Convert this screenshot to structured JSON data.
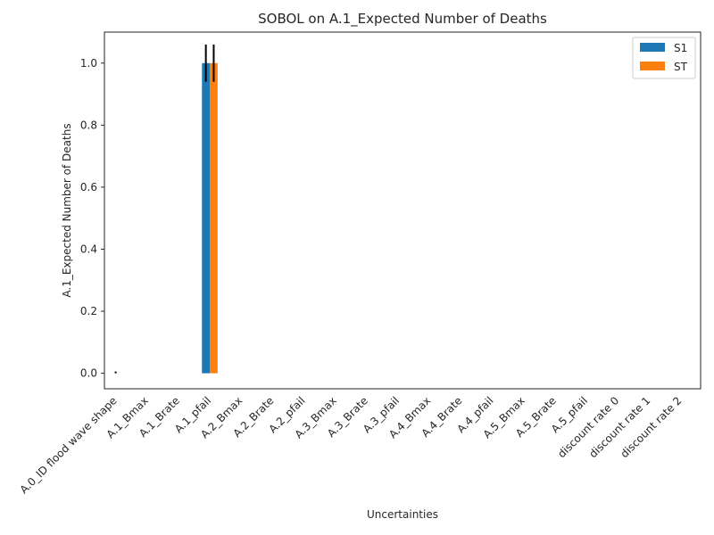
{
  "chart_data": {
    "type": "bar",
    "title": "SOBOL on A.1_Expected Number of Deaths",
    "xlabel": "Uncertainties",
    "ylabel": "A.1_Expected Number of Deaths",
    "ylim": [
      -0.05,
      1.1
    ],
    "yticks": [
      "0.0",
      "0.2",
      "0.4",
      "0.6",
      "0.8",
      "1.0"
    ],
    "grid": false,
    "legend_position": "top-right",
    "categories": [
      "A.0_ID flood wave shape",
      "A.1_Bmax",
      "A.1_Brate",
      "A.1_pfail",
      "A.2_Bmax",
      "A.2_Brate",
      "A.2_pfail",
      "A.3_Bmax",
      "A.3_Brate",
      "A.3_pfail",
      "A.4_Bmax",
      "A.4_Brate",
      "A.4_pfail",
      "A.5_Bmax",
      "A.5_Brate",
      "A.5_pfail",
      "discount rate 0",
      "discount rate 1",
      "discount rate 2"
    ],
    "series": [
      {
        "name": "S1",
        "color": "#1f77b4",
        "values": [
          0,
          0,
          0,
          1.0,
          0,
          0,
          0,
          0,
          0,
          0,
          0,
          0,
          0,
          0,
          0,
          0,
          0,
          0,
          0
        ],
        "errors": [
          0,
          0,
          0,
          0.06,
          0,
          0,
          0,
          0,
          0,
          0,
          0,
          0,
          0,
          0,
          0,
          0,
          0,
          0,
          0
        ]
      },
      {
        "name": "ST",
        "color": "#ff7f0e",
        "values": [
          0,
          0,
          0,
          1.0,
          0,
          0,
          0,
          0,
          0,
          0,
          0,
          0,
          0,
          0,
          0,
          0,
          0,
          0,
          0
        ],
        "errors": [
          0,
          0,
          0,
          0.06,
          0,
          0,
          0,
          0,
          0,
          0,
          0,
          0,
          0,
          0,
          0,
          0,
          0,
          0,
          0
        ]
      }
    ]
  }
}
